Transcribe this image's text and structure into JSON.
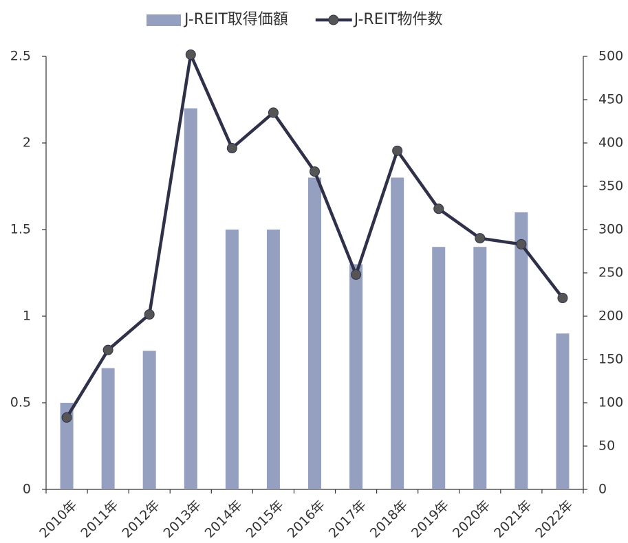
{
  "chart_data": {
    "type": "bar-line",
    "categories": [
      "2010年",
      "2011年",
      "2012年",
      "2013年",
      "2014年",
      "2015年",
      "2016年",
      "2017年",
      "2018年",
      "2019年",
      "2020年",
      "2021年",
      "2022年"
    ],
    "series": [
      {
        "name": "J-REIT取得価額",
        "type": "bar",
        "color": "#959fbf",
        "values": [
          0.5,
          0.7,
          0.8,
          2.2,
          1.5,
          1.5,
          1.8,
          1.3,
          1.8,
          1.4,
          1.4,
          1.6,
          0.9
        ]
      },
      {
        "name": "J-REIT物件数",
        "type": "line",
        "axis": "y2",
        "color": "#2e3148",
        "marker_color": "#555555",
        "values": [
          83,
          161,
          202,
          502,
          394,
          435,
          367,
          248,
          391,
          324,
          290,
          283,
          221
        ]
      }
    ],
    "ylim": [
      0,
      2.5
    ],
    "yticks": [
      0,
      0.5,
      1,
      1.5,
      2,
      2.5
    ],
    "y2lim": [
      0,
      500
    ],
    "y2ticks": [
      0,
      50,
      100,
      150,
      200,
      250,
      300,
      350,
      400,
      450,
      500
    ],
    "legend": "top",
    "grid": false
  }
}
